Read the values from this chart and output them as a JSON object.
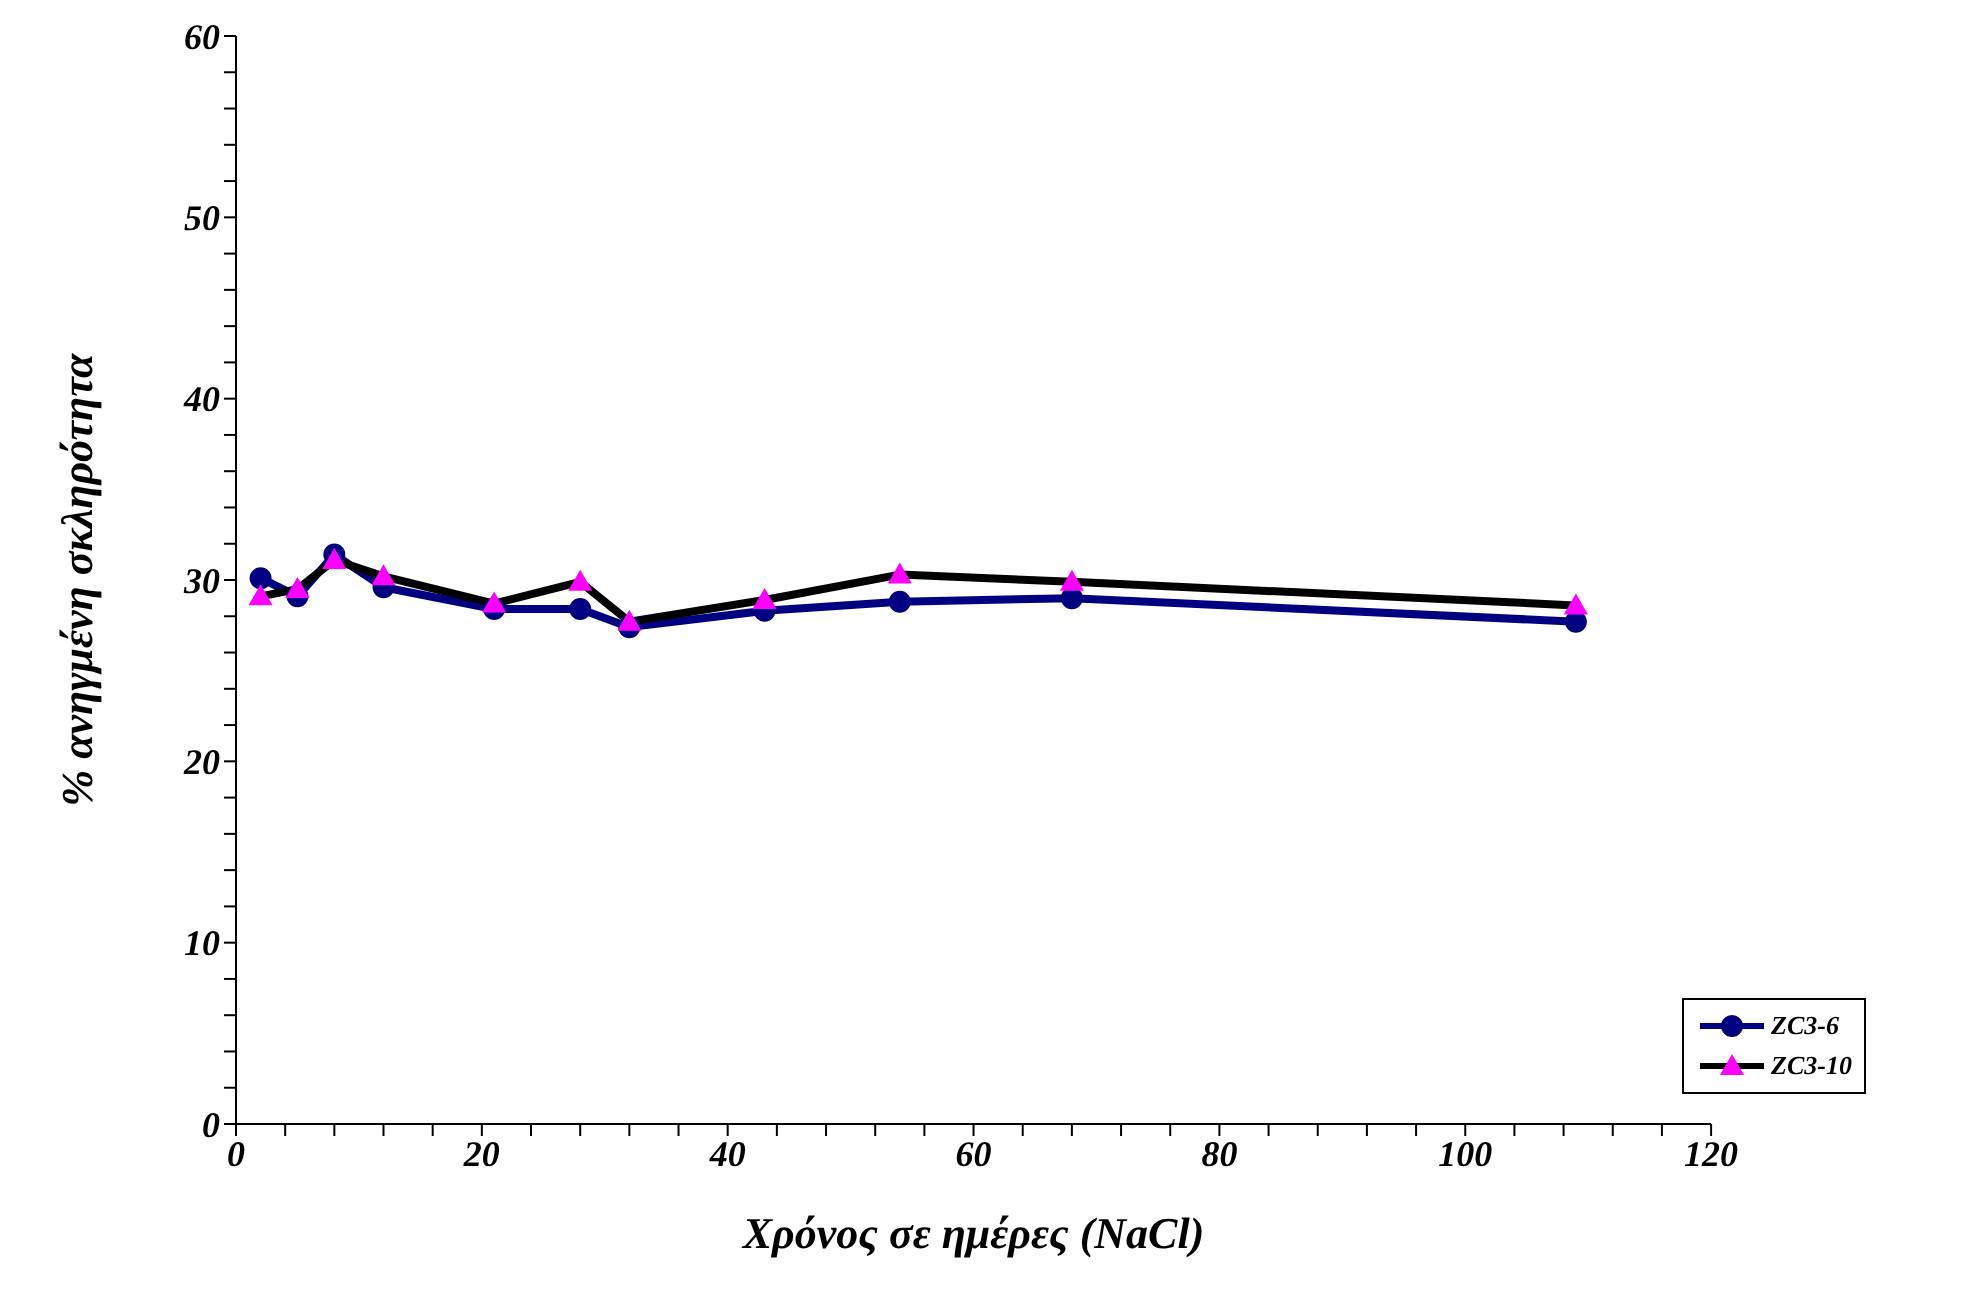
{
  "chart_data": {
    "type": "line",
    "xlabel": "Χρόνος σε ημέρες (NaCl)",
    "ylabel": "% ανηγμένη σκληρότητα",
    "x": [
      2,
      5,
      8,
      12,
      21,
      28,
      32,
      43,
      54,
      68,
      109
    ],
    "series": [
      {
        "name": "ZC3-6",
        "color": "#000080",
        "marker": "circle",
        "values": [
          30.1,
          29.1,
          31.4,
          29.6,
          28.4,
          28.4,
          27.4,
          28.3,
          28.8,
          29.0,
          27.7
        ]
      },
      {
        "name": "ZC3-10",
        "color": "#000000",
        "marker": "triangle",
        "colors": [
          "#ff00ff",
          "#ff00ff",
          "#ff00ff",
          "#ff00ff",
          "#ff00ff",
          "#ff00ff",
          "#ff00ff",
          "#ff00ff",
          "#ff00ff",
          "#ff00ff",
          "#ff00ff"
        ],
        "values": [
          29.1,
          29.5,
          31.1,
          30.2,
          28.7,
          29.9,
          27.7,
          28.9,
          30.3,
          29.9,
          28.6
        ]
      }
    ],
    "xlim": [
      0,
      120
    ],
    "xticks": [
      0,
      {
        "value": 4,
        "label": null
      },
      {
        "value": 8,
        "label": null
      },
      {
        "value": 12,
        "label": null
      },
      {
        "value": 16,
        "label": null
      },
      20,
      {
        "value": 24,
        "label": null
      },
      {
        "value": 28,
        "label": null
      },
      {
        "value": 32,
        "label": null
      },
      {
        "value": 36,
        "label": null
      },
      40,
      {
        "value": 44,
        "label": null
      },
      {
        "value": 48,
        "label": null
      },
      {
        "value": 52,
        "label": null
      },
      {
        "value": 56,
        "label": null
      },
      60,
      {
        "value": 64,
        "label": null
      },
      {
        "value": 68,
        "label": null
      },
      {
        "value": 72,
        "label": null
      },
      {
        "value": 76,
        "label": null
      },
      80,
      {
        "value": 84,
        "label": null
      },
      {
        "value": 88,
        "label": null
      },
      {
        "value": 92,
        "label": null
      },
      {
        "value": 96,
        "label": null
      },
      100,
      {
        "value": 104,
        "label": null
      },
      {
        "value": 108,
        "label": null
      },
      {
        "value": 112,
        "label": null
      },
      {
        "value": 116,
        "label": null
      },
      120
    ],
    "ylim": [
      0,
      60
    ],
    "yticks": [
      0,
      {
        "value": 2,
        "label": null
      },
      {
        "value": 4,
        "label": null
      },
      {
        "value": 6,
        "label": null
      },
      {
        "value": 8,
        "label": null
      },
      10,
      {
        "value": 12,
        "label": null
      },
      {
        "value": 14,
        "label": null
      },
      {
        "value": 16,
        "label": null
      },
      {
        "value": 18,
        "label": null
      },
      20,
      {
        "value": 22,
        "label": null
      },
      {
        "value": 24,
        "label": null
      },
      {
        "value": 26,
        "label": null
      },
      {
        "value": 28,
        "label": null
      },
      30,
      {
        "value": 32,
        "label": null
      },
      {
        "value": 34,
        "label": null
      },
      {
        "value": 36,
        "label": null
      },
      {
        "value": 38,
        "label": null
      },
      40,
      {
        "value": 42,
        "label": null
      },
      {
        "value": 44,
        "label": null
      },
      {
        "value": 46,
        "label": null
      },
      {
        "value": 48,
        "label": null
      },
      50,
      {
        "value": 52,
        "label": null
      },
      {
        "value": 54,
        "label": null
      },
      {
        "value": 56,
        "label": null
      },
      {
        "value": 58,
        "label": null
      },
      60
    ],
    "grid": false,
    "legend": "bottom right",
    "line_style": "solid"
  }
}
